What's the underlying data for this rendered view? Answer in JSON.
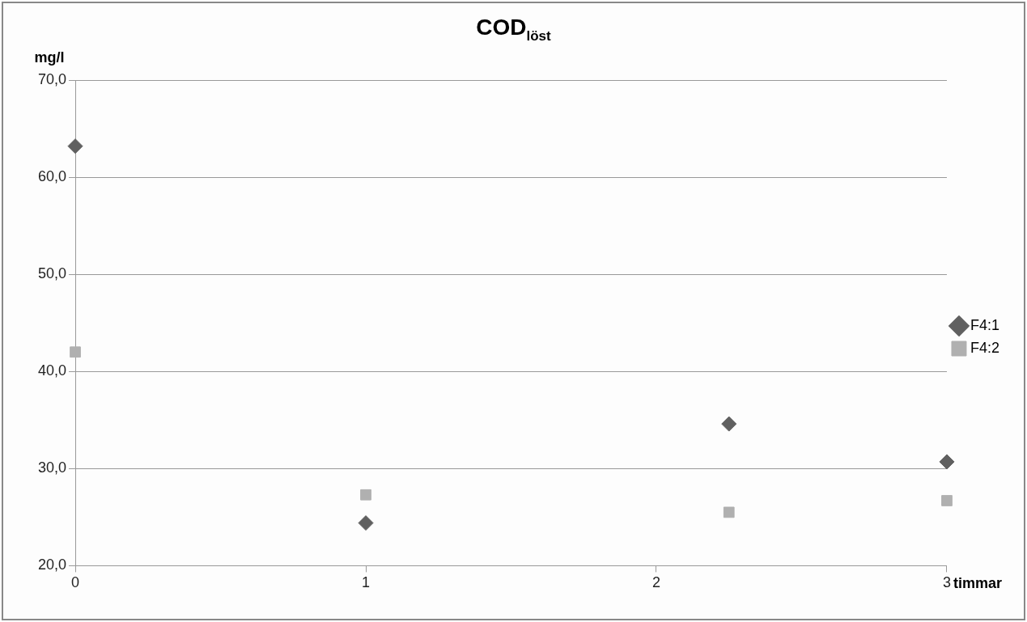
{
  "chart_data": {
    "type": "scatter",
    "title": "COD$_{löst}$",
    "ylabel": "mg/l",
    "xlabel": "timmar",
    "xlim": [
      0,
      3
    ],
    "xticks": [
      0,
      1,
      2,
      3
    ],
    "ylim": [
      20,
      70
    ],
    "yticks": [
      {
        "value": 20,
        "label": "20,0"
      },
      {
        "value": 30,
        "label": "30,0"
      },
      {
        "value": 40,
        "label": "40,0"
      },
      {
        "value": 50,
        "label": "50,0"
      },
      {
        "value": 60,
        "label": "60,0"
      },
      {
        "value": 70,
        "label": "70,0"
      }
    ],
    "grid": "y",
    "legend": "right",
    "series": [
      {
        "name": "F4:1",
        "color": "#606060",
        "marker": "diamond",
        "x": [
          0,
          1,
          2.25,
          3
        ],
        "values": [
          63.2,
          24.4,
          34.6,
          30.7
        ]
      },
      {
        "name": "F4:2",
        "color": "#b0b0b0",
        "marker": "square",
        "x": [
          0,
          1,
          2.25,
          3
        ],
        "values": [
          42.0,
          27.3,
          25.5,
          26.7
        ]
      }
    ]
  }
}
